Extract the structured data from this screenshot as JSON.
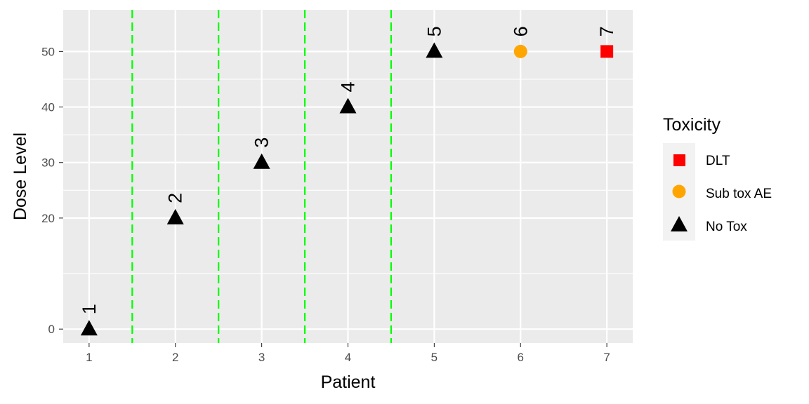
{
  "chart_data": {
    "type": "scatter",
    "xlabel": "Patient",
    "ylabel": "Dose Level",
    "xlim": [
      0.7,
      7.3
    ],
    "ylim": [
      -2.5,
      57.5
    ],
    "x_ticks": [
      1,
      2,
      3,
      4,
      5,
      6,
      7
    ],
    "y_ticks": [
      0,
      20,
      30,
      40,
      50
    ],
    "grid": true,
    "reference_lines": {
      "orientation": "vertical",
      "x": [
        1.5,
        2.5,
        3.5,
        4.5
      ],
      "color": "#00ff00",
      "style": "dashed"
    },
    "points": [
      {
        "x": 1,
        "y": 0,
        "label": "1",
        "toxicity": "No Tox"
      },
      {
        "x": 2,
        "y": 20,
        "label": "2",
        "toxicity": "No Tox"
      },
      {
        "x": 3,
        "y": 30,
        "label": "3",
        "toxicity": "No Tox"
      },
      {
        "x": 4,
        "y": 40,
        "label": "4",
        "toxicity": "No Tox"
      },
      {
        "x": 5,
        "y": 50,
        "label": "5",
        "toxicity": "No Tox"
      },
      {
        "x": 6,
        "y": 50,
        "label": "6",
        "toxicity": "Sub tox AE"
      },
      {
        "x": 7,
        "y": 50,
        "label": "7",
        "toxicity": "DLT"
      }
    ],
    "legend": {
      "title": "Toxicity",
      "position": "right",
      "entries": [
        {
          "name": "DLT",
          "shape": "square",
          "color": "#ff0000"
        },
        {
          "name": "Sub tox AE",
          "shape": "circle",
          "color": "#ffa500"
        },
        {
          "name": "No Tox",
          "shape": "triangle",
          "color": "#000000"
        }
      ]
    },
    "colors": {
      "panel": "#ebebeb",
      "grid": "#ffffff"
    }
  }
}
